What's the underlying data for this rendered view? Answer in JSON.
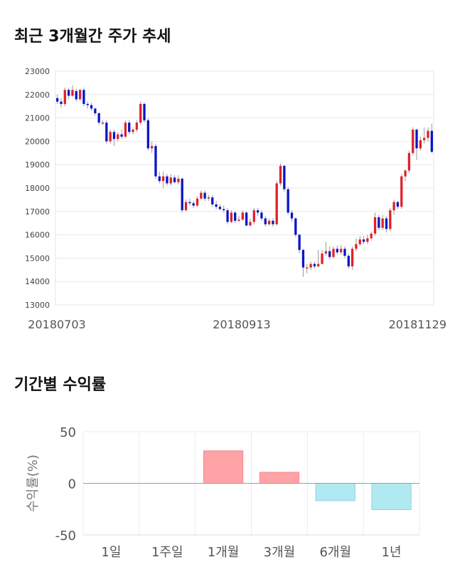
{
  "section1": {
    "title": "최근 3개월간 주가 추세"
  },
  "section2": {
    "title": "기간별 수익률"
  },
  "colors": {
    "up": "#e0202a",
    "down": "#0a14c8",
    "bar_pos": "#ffa3a6",
    "bar_neg": "#b0e9f2"
  },
  "chart_data": [
    {
      "type": "candlestick",
      "title": "최근 3개월간 주가 추세",
      "ylim": [
        13000,
        23000
      ],
      "y_ticks": [
        23000,
        22000,
        21000,
        20000,
        19000,
        18000,
        17000,
        16000,
        15000,
        14000,
        13000
      ],
      "x_ticks": [
        "20180703",
        "20180913",
        "20181129"
      ],
      "grid": true,
      "candles": [
        [
          21850,
          21700,
          22000,
          21600
        ],
        [
          21700,
          21600,
          21850,
          21450
        ],
        [
          21600,
          22200,
          22300,
          21500
        ],
        [
          22200,
          21950,
          22300,
          21800
        ],
        [
          21950,
          22200,
          22400,
          21900
        ],
        [
          22150,
          21800,
          22250,
          21700
        ],
        [
          21800,
          22200,
          22250,
          21750
        ],
        [
          22200,
          21600,
          22300,
          21500
        ],
        [
          21600,
          21550,
          21700,
          21400
        ],
        [
          21550,
          21400,
          21650,
          21300
        ],
        [
          21400,
          21200,
          21450,
          21100
        ],
        [
          21200,
          20800,
          21250,
          20700
        ],
        [
          20800,
          20800,
          20900,
          20700
        ],
        [
          20800,
          20000,
          20900,
          19900
        ],
        [
          20000,
          20400,
          20500,
          19900
        ],
        [
          20400,
          20100,
          20500,
          19800
        ],
        [
          20100,
          20300,
          20400,
          20000
        ],
        [
          20300,
          20200,
          20500,
          20100
        ],
        [
          20200,
          20800,
          20900,
          20150
        ],
        [
          20800,
          20400,
          20900,
          20300
        ],
        [
          20400,
          20500,
          20600,
          20300
        ],
        [
          20500,
          20800,
          20900,
          20400
        ],
        [
          20800,
          21600,
          21700,
          20700
        ],
        [
          21600,
          20900,
          21650,
          20800
        ],
        [
          20900,
          19700,
          21000,
          19600
        ],
        [
          19700,
          19800,
          20000,
          19500
        ],
        [
          19800,
          18500,
          19900,
          18400
        ],
        [
          18500,
          18300,
          18700,
          18200
        ],
        [
          18300,
          18500,
          18700,
          18000
        ],
        [
          18500,
          18200,
          18600,
          18100
        ],
        [
          18200,
          18450,
          18600,
          18100
        ],
        [
          18450,
          18250,
          18550,
          18200
        ],
        [
          18250,
          18400,
          18550,
          18150
        ],
        [
          18400,
          17050,
          18450,
          16950
        ],
        [
          17050,
          17400,
          17500,
          17000
        ],
        [
          17400,
          17350,
          17550,
          17250
        ],
        [
          17350,
          17250,
          17450,
          17150
        ],
        [
          17250,
          17550,
          17650,
          17200
        ],
        [
          17550,
          17800,
          17900,
          17500
        ],
        [
          17800,
          17550,
          17900,
          17450
        ],
        [
          17550,
          17600,
          17700,
          17450
        ],
        [
          17600,
          17300,
          17700,
          17200
        ],
        [
          17300,
          17200,
          17450,
          17100
        ],
        [
          17200,
          17100,
          17300,
          17050
        ],
        [
          17100,
          17050,
          17250,
          16950
        ],
        [
          17050,
          16550,
          17150,
          16450
        ],
        [
          16550,
          16950,
          17050,
          16500
        ],
        [
          16950,
          16600,
          17000,
          16500
        ],
        [
          16600,
          16650,
          16800,
          16550
        ],
        [
          16650,
          16950,
          17050,
          16600
        ],
        [
          16950,
          16400,
          17000,
          16350
        ],
        [
          16400,
          16550,
          16700,
          16350
        ],
        [
          16550,
          17050,
          17150,
          16450
        ],
        [
          17050,
          16950,
          17150,
          16800
        ],
        [
          16950,
          16700,
          17050,
          16600
        ],
        [
          16700,
          16450,
          16800,
          16350
        ],
        [
          16450,
          16600,
          16700,
          16400
        ],
        [
          16600,
          16450,
          16700,
          16350
        ],
        [
          16450,
          18200,
          18300,
          16400
        ],
        [
          18200,
          18950,
          19050,
          18100
        ],
        [
          18950,
          17950,
          19000,
          17850
        ],
        [
          17950,
          16950,
          18050,
          16850
        ],
        [
          16950,
          16700,
          17050,
          16550
        ],
        [
          16700,
          16000,
          16750,
          15900
        ],
        [
          16000,
          15350,
          16050,
          15200
        ],
        [
          15350,
          14600,
          15400,
          14200
        ],
        [
          14600,
          14600,
          14750,
          14350
        ],
        [
          14600,
          14750,
          14850,
          14500
        ],
        [
          14750,
          14650,
          14850,
          14550
        ],
        [
          14650,
          14750,
          15350,
          14600
        ],
        [
          14750,
          15200,
          15350,
          15100
        ],
        [
          15200,
          15300,
          15700,
          15100
        ],
        [
          15300,
          15050,
          15500,
          14950
        ],
        [
          15050,
          15400,
          15500,
          15000
        ],
        [
          15400,
          15250,
          15550,
          15150
        ],
        [
          15250,
          15400,
          15550,
          15150
        ],
        [
          15400,
          15100,
          15500,
          15000
        ],
        [
          15100,
          14650,
          15200,
          14550
        ],
        [
          14650,
          15400,
          15500,
          14500
        ],
        [
          15400,
          15600,
          15850,
          15300
        ],
        [
          15600,
          15800,
          15950,
          15500
        ],
        [
          15800,
          15700,
          15950,
          15600
        ],
        [
          15700,
          15850,
          16000,
          15600
        ],
        [
          15850,
          16050,
          16150,
          15750
        ],
        [
          16050,
          16750,
          16950,
          15950
        ],
        [
          16750,
          16300,
          16850,
          16200
        ],
        [
          16300,
          16700,
          16850,
          16200
        ],
        [
          16700,
          16250,
          16800,
          16100
        ],
        [
          16250,
          17050,
          17150,
          16150
        ],
        [
          17050,
          17400,
          17500,
          16850
        ],
        [
          17400,
          17200,
          17450,
          17100
        ],
        [
          17200,
          18500,
          18600,
          17100
        ],
        [
          18500,
          18750,
          18800,
          18300
        ],
        [
          18750,
          19500,
          19600,
          18650
        ],
        [
          19500,
          20500,
          20600,
          19400
        ],
        [
          20500,
          19700,
          20550,
          19200
        ],
        [
          19700,
          20050,
          20200,
          19600
        ],
        [
          20050,
          20150,
          20600,
          19900
        ],
        [
          20150,
          20450,
          20600,
          20000
        ],
        [
          20450,
          19550,
          20750,
          19500
        ]
      ]
    },
    {
      "type": "bar",
      "title": "기간별 수익률",
      "categories": [
        "1일",
        "1주일",
        "1개월",
        "3개월",
        "6개월",
        "1년"
      ],
      "values": [
        0,
        0,
        31.5,
        10.7,
        -16.8,
        -25.5
      ],
      "ylabel": "수익률(%)",
      "ylim": [
        -50,
        50
      ],
      "y_ticks": [
        50,
        0,
        -50
      ],
      "grid": true
    }
  ]
}
